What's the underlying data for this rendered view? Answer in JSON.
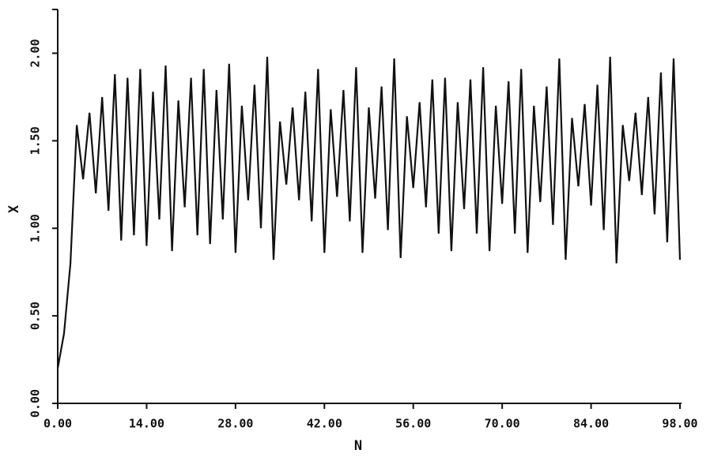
{
  "chart_data": {
    "type": "line",
    "x_label": "N",
    "y_label": "X",
    "x": [
      0,
      1,
      2,
      3,
      4,
      5,
      6,
      7,
      8,
      9,
      10,
      11,
      12,
      13,
      14,
      15,
      16,
      17,
      18,
      19,
      20,
      21,
      22,
      23,
      24,
      25,
      26,
      27,
      28,
      29,
      30,
      31,
      32,
      33,
      34,
      35,
      36,
      37,
      38,
      39,
      40,
      41,
      42,
      43,
      44,
      45,
      46,
      47,
      48,
      49,
      50,
      51,
      52,
      53,
      54,
      55,
      56,
      57,
      58,
      59,
      60,
      61,
      62,
      63,
      64,
      65,
      66,
      67,
      68,
      69,
      70,
      71,
      72,
      73,
      74,
      75,
      76,
      77,
      78,
      79,
      80,
      81,
      82,
      83,
      84,
      85,
      86,
      87,
      88,
      89,
      90,
      91,
      92,
      93,
      94,
      95,
      96,
      97,
      98
    ],
    "values": [
      0.2,
      0.4,
      0.8,
      1.59,
      1.28,
      1.66,
      1.2,
      1.75,
      1.1,
      1.88,
      0.93,
      1.86,
      0.96,
      1.91,
      0.9,
      1.78,
      1.05,
      1.93,
      0.87,
      1.73,
      1.12,
      1.86,
      0.96,
      1.91,
      0.91,
      1.79,
      1.05,
      1.94,
      0.86,
      1.7,
      1.16,
      1.82,
      1.0,
      1.98,
      0.82,
      1.61,
      1.25,
      1.69,
      1.16,
      1.78,
      1.04,
      1.91,
      0.86,
      1.68,
      1.18,
      1.79,
      1.04,
      1.92,
      0.86,
      1.69,
      1.17,
      1.81,
      0.99,
      1.97,
      0.83,
      1.64,
      1.23,
      1.72,
      1.12,
      1.85,
      0.97,
      1.86,
      0.87,
      1.72,
      1.11,
      1.85,
      0.97,
      1.92,
      0.87,
      1.7,
      1.14,
      1.84,
      0.97,
      1.91,
      0.86,
      1.7,
      1.15,
      1.81,
      1.02,
      1.97,
      0.82,
      1.63,
      1.24,
      1.71,
      1.13,
      1.82,
      0.99,
      1.98,
      0.8,
      1.59,
      1.27,
      1.66,
      1.19,
      1.75,
      1.08,
      1.89,
      0.92,
      1.97,
      0.82
    ],
    "color": "#111111",
    "xlim": [
      0,
      98
    ],
    "xticks": [
      {
        "value": 0,
        "label": "0.00"
      },
      {
        "value": 14,
        "label": "14.00"
      },
      {
        "value": 28,
        "label": "28.00"
      },
      {
        "value": 42,
        "label": "42.00"
      },
      {
        "value": 56,
        "label": "56.00"
      },
      {
        "value": 70,
        "label": "70.00"
      },
      {
        "value": 84,
        "label": "84.00"
      },
      {
        "value": 98,
        "label": "98.00"
      }
    ],
    "ylim": [
      0,
      2.25
    ],
    "yticks": [
      {
        "value": 0,
        "label": "0.00"
      },
      {
        "value": 0.5,
        "label": "0.50"
      },
      {
        "value": 1,
        "label": "1.00"
      },
      {
        "value": 1.5,
        "label": "1.50"
      },
      {
        "value": 2,
        "label": "2.00"
      }
    ],
    "grid": false
  }
}
